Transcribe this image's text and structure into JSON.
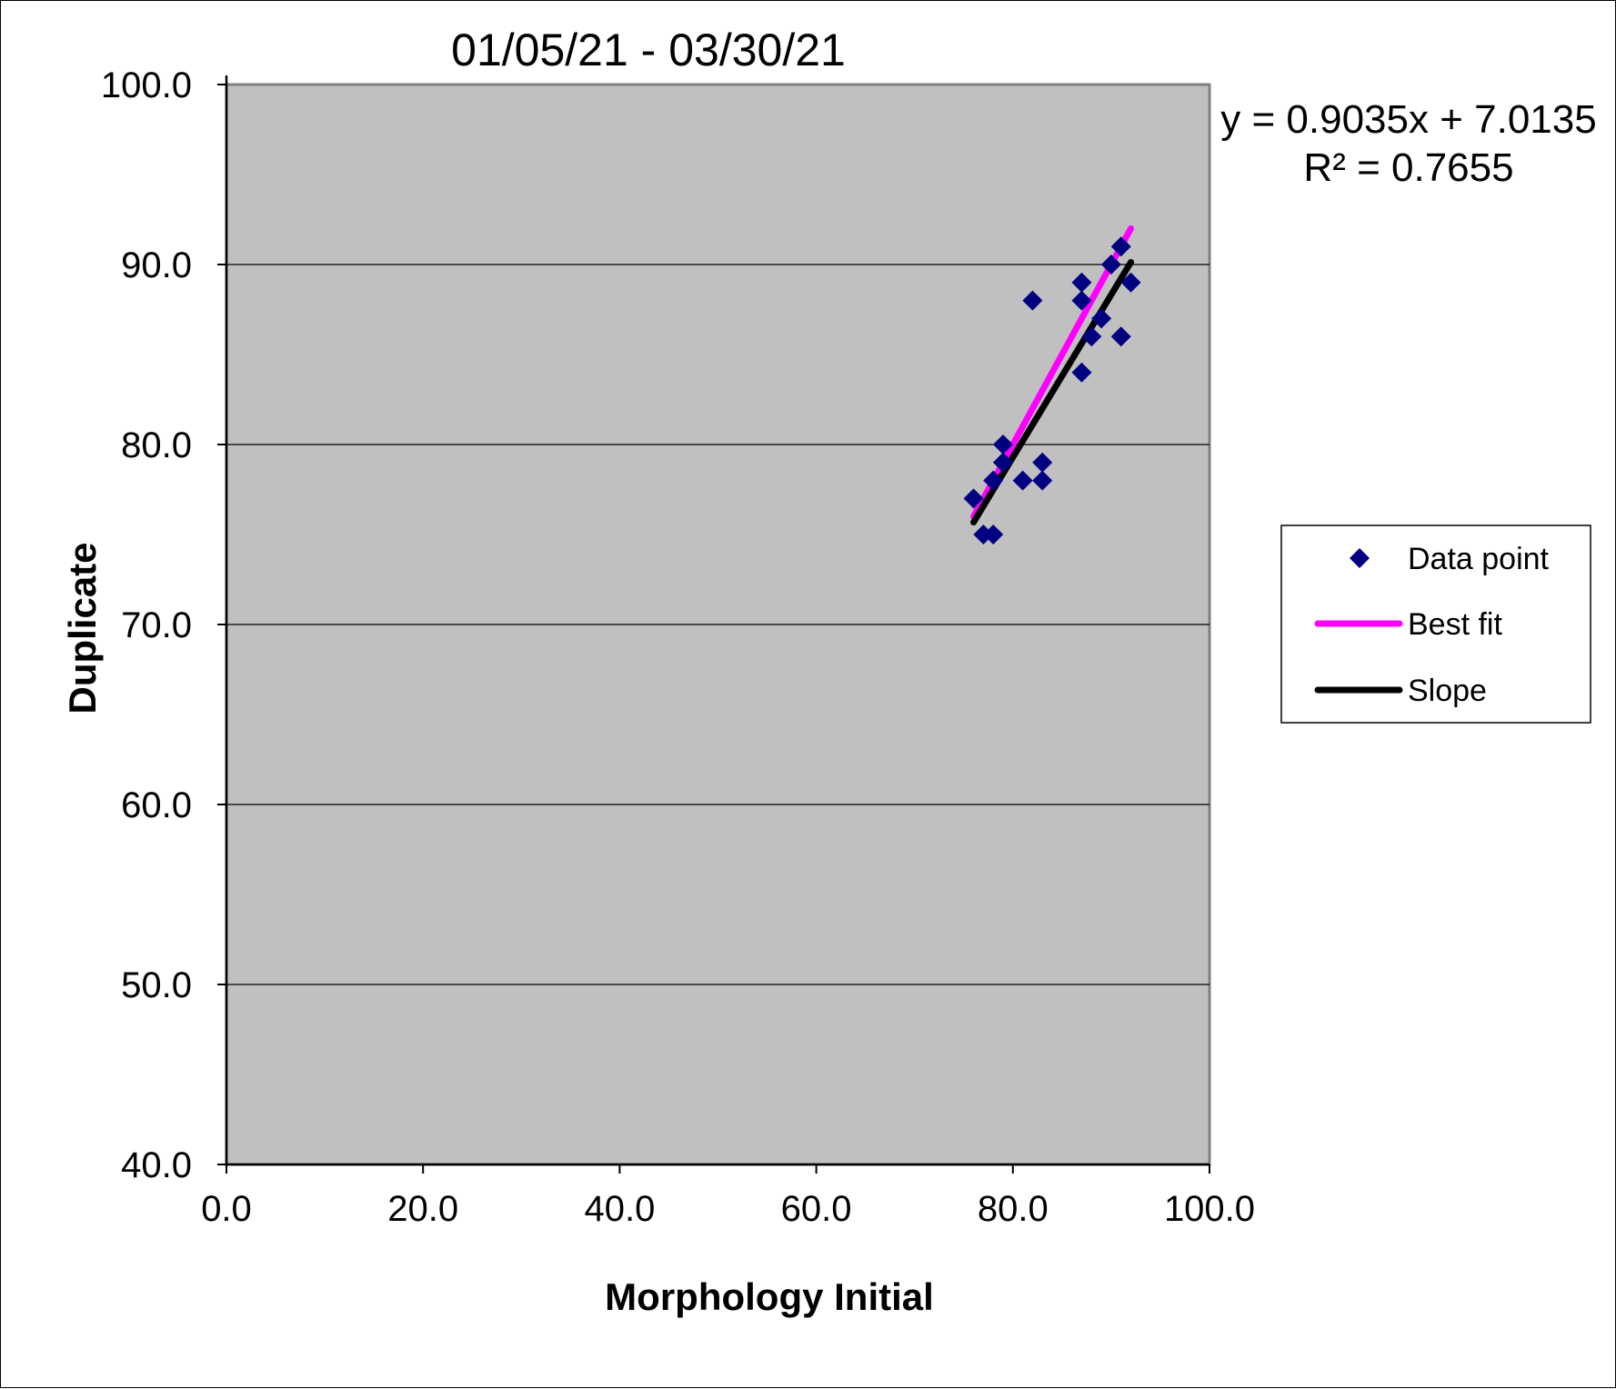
{
  "chart_data": {
    "type": "scatter",
    "title": "01/05/21 - 03/30/21",
    "xlabel": "Morphology Initial",
    "ylabel": "Duplicate",
    "xlim": [
      0,
      100
    ],
    "ylim": [
      40,
      100
    ],
    "x_ticks": [
      "0.0",
      "20.0",
      "40.0",
      "60.0",
      "80.0",
      "100.0"
    ],
    "y_ticks": [
      "40.0",
      "50.0",
      "60.0",
      "70.0",
      "80.0",
      "90.0",
      "100.0"
    ],
    "grid": "horizontal major gridlines",
    "plot_background": "#c0c0c0",
    "legend_position": "right",
    "equation": "y = 0.9035x + 7.0135",
    "r_squared": "R² = 0.7655",
    "series": [
      {
        "name": "Data point",
        "kind": "points",
        "color": "#000080",
        "marker": "diamond",
        "x": [
          76,
          77,
          78,
          78,
          79,
          79,
          79,
          81,
          82,
          83,
          83,
          87,
          87,
          87,
          88,
          89,
          90,
          91,
          91,
          92
        ],
        "y": [
          77,
          75,
          75,
          78,
          79,
          80,
          79,
          78,
          88,
          78,
          79,
          89,
          88,
          84,
          86,
          87,
          90,
          91,
          86,
          89
        ]
      },
      {
        "name": "Best fit",
        "kind": "line",
        "color": "#ff00ff",
        "x": [
          76,
          92
        ],
        "y": [
          76,
          92
        ]
      },
      {
        "name": "Slope",
        "kind": "line",
        "color": "#000000",
        "x": [
          76,
          92
        ],
        "y": [
          75.68,
          90.13
        ]
      }
    ]
  }
}
